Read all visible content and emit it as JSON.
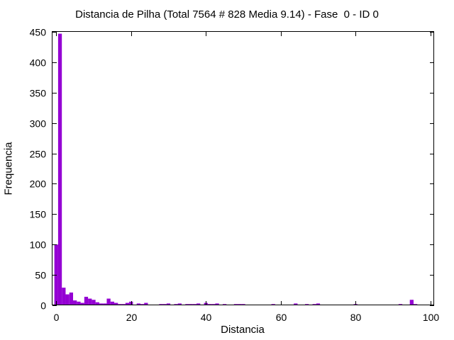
{
  "chart_data": {
    "type": "bar",
    "title": "Distancia de Pilha (Total 7564 # 828 Media 9.14) - Fase  0 - ID 0",
    "xlabel": "Distancia",
    "ylabel": "Frequencia",
    "xlim": [
      -1,
      101
    ],
    "ylim": [
      0,
      450
    ],
    "xticks": [
      0,
      20,
      40,
      60,
      80,
      100
    ],
    "yticks": [
      0,
      50,
      100,
      150,
      200,
      250,
      300,
      350,
      400,
      450
    ],
    "bar_color": "#9400d3",
    "grid": false,
    "x": [
      0,
      1,
      2,
      3,
      4,
      5,
      6,
      7,
      8,
      9,
      10,
      11,
      12,
      13,
      14,
      15,
      16,
      17,
      18,
      19,
      20,
      21,
      22,
      23,
      24,
      25,
      26,
      27,
      28,
      29,
      30,
      31,
      32,
      33,
      34,
      35,
      36,
      37,
      38,
      39,
      40,
      41,
      42,
      43,
      44,
      45,
      46,
      47,
      48,
      49,
      50,
      51,
      52,
      53,
      54,
      55,
      56,
      57,
      58,
      59,
      60,
      61,
      62,
      63,
      64,
      65,
      66,
      67,
      68,
      69,
      70,
      71,
      72,
      73,
      74,
      75,
      76,
      77,
      78,
      79,
      80,
      81,
      82,
      83,
      84,
      85,
      86,
      87,
      88,
      89,
      90,
      91,
      92,
      93,
      94,
      95,
      96,
      97,
      98,
      99,
      100
    ],
    "values": [
      100,
      447,
      29,
      18,
      21,
      8,
      6,
      4,
      14,
      11,
      9,
      5,
      3,
      3,
      11,
      6,
      4,
      2,
      2,
      4,
      6,
      1,
      3,
      2,
      4,
      1,
      1,
      0,
      2,
      2,
      3,
      0,
      2,
      3,
      0,
      2,
      2,
      2,
      3,
      1,
      4,
      2,
      2,
      3,
      1,
      2,
      1,
      1,
      2,
      2,
      2,
      1,
      0,
      1,
      0,
      1,
      1,
      0,
      2,
      1,
      1,
      1,
      0,
      1,
      3,
      1,
      1,
      2,
      1,
      2,
      3,
      1,
      1,
      1,
      1,
      1,
      1,
      1,
      1,
      0,
      2,
      0,
      1,
      0,
      0,
      0,
      0,
      1,
      0,
      0,
      1,
      1,
      2,
      0,
      0,
      9,
      2,
      1,
      0,
      1,
      1
    ]
  }
}
